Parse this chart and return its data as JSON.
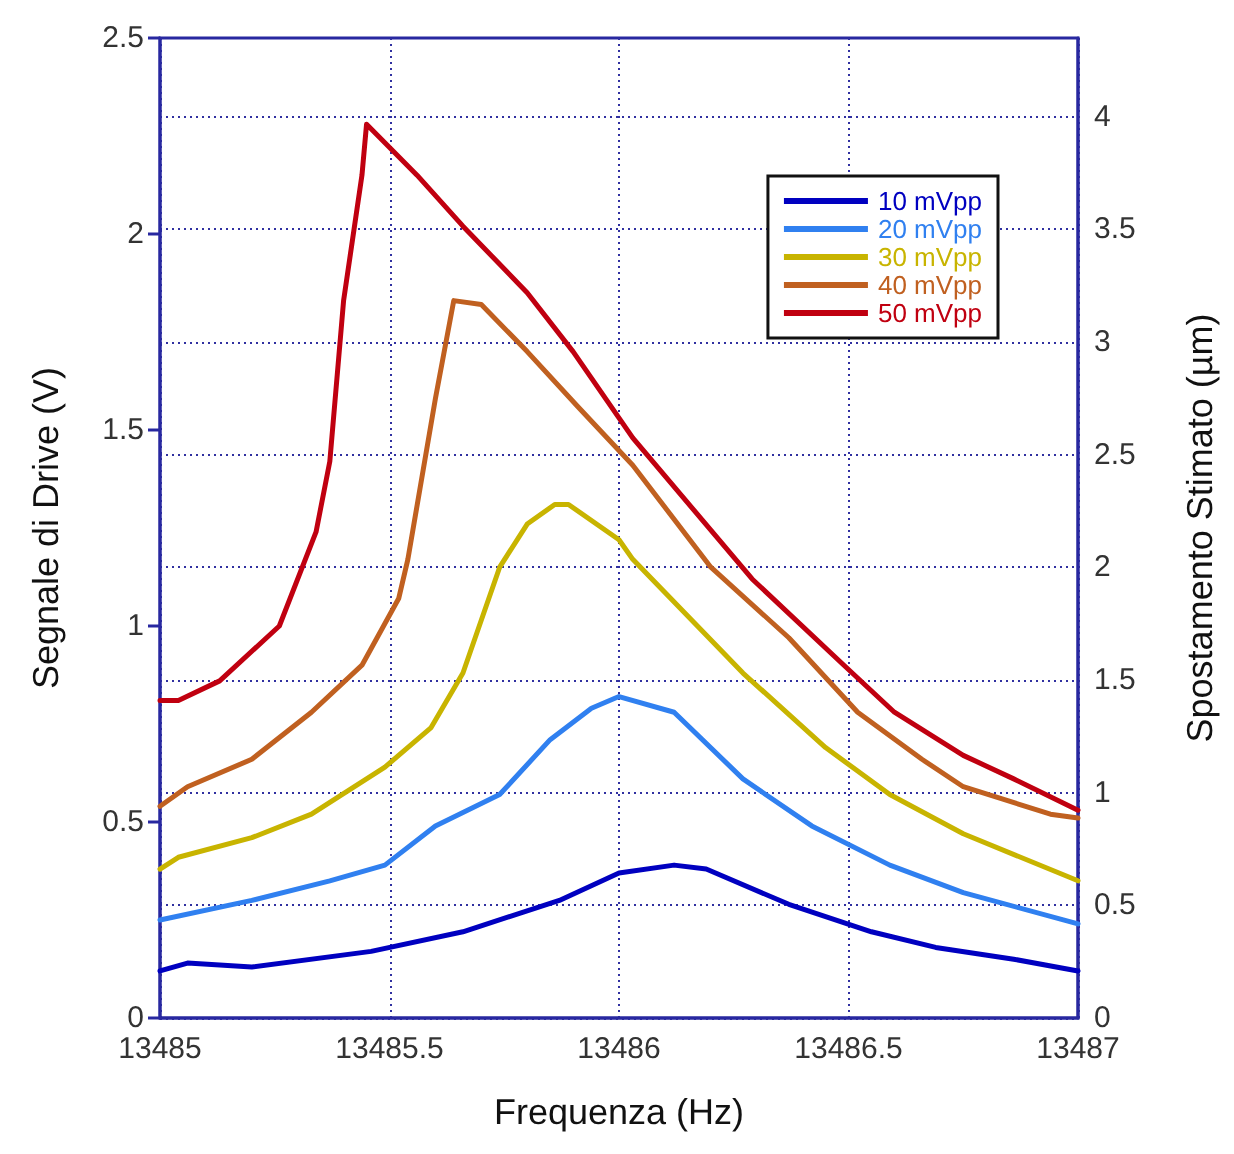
{
  "chart_data": {
    "type": "line",
    "xlabel": "Frequenza (Hz)",
    "ylabel": "Segnale di Drive (V)",
    "y2label": "Spostamento Stimato (µm)",
    "xlim": [
      13485,
      13487
    ],
    "xticks": [
      13485,
      13485.5,
      13486,
      13486.5,
      13487
    ],
    "ylim": [
      0,
      2.5
    ],
    "yticks": [
      0,
      0.5,
      1,
      1.5,
      2,
      2.5
    ],
    "y2lim": [
      0,
      4.35
    ],
    "y2ticks": [
      0,
      0.5,
      1,
      1.5,
      2,
      2.5,
      3,
      3.5,
      4
    ],
    "grid": true,
    "legend": "top right",
    "marker": "none",
    "line_style": "solid",
    "series": [
      {
        "name": "10 mVpp",
        "color": "#0000c0",
        "x": [
          13485,
          13485.06,
          13485.2,
          13485.46,
          13485.66,
          13485.87,
          13486,
          13486.12,
          13486.19,
          13486.37,
          13486.55,
          13486.69,
          13486.86,
          13487
        ],
        "values": [
          0.12,
          0.14,
          0.13,
          0.17,
          0.22,
          0.3,
          0.37,
          0.39,
          0.38,
          0.29,
          0.22,
          0.18,
          0.15,
          0.12
        ]
      },
      {
        "name": "20 mVpp",
        "color": "#3080f0",
        "x": [
          13485,
          13485.2,
          13485.37,
          13485.49,
          13485.6,
          13485.74,
          13485.85,
          13485.94,
          13486,
          13486.12,
          13486.27,
          13486.42,
          13486.59,
          13486.75,
          13487
        ],
        "values": [
          0.25,
          0.3,
          0.35,
          0.39,
          0.49,
          0.57,
          0.71,
          0.79,
          0.82,
          0.78,
          0.61,
          0.49,
          0.39,
          0.32,
          0.24
        ]
      },
      {
        "name": "30 mVpp",
        "color": "#c8b400",
        "x": [
          13485,
          13485.04,
          13485.2,
          13485.33,
          13485.49,
          13485.59,
          13485.66,
          13485.74,
          13485.8,
          13485.86,
          13485.89,
          13486,
          13486.03,
          13486.27,
          13486.45,
          13486.59,
          13486.75,
          13487
        ],
        "values": [
          0.38,
          0.41,
          0.46,
          0.52,
          0.64,
          0.74,
          0.88,
          1.15,
          1.26,
          1.31,
          1.31,
          1.22,
          1.17,
          0.88,
          0.69,
          0.57,
          0.47,
          0.35
        ]
      },
      {
        "name": "40 mVpp",
        "color": "#c06020",
        "x": [
          13485,
          13485.06,
          13485.2,
          13485.33,
          13485.44,
          13485.52,
          13485.54,
          13485.6,
          13485.64,
          13485.7,
          13485.8,
          13485.91,
          13486.03,
          13486.2,
          13486.37,
          13486.52,
          13486.66,
          13486.75,
          13486.94,
          13487
        ],
        "values": [
          0.54,
          0.59,
          0.66,
          0.78,
          0.9,
          1.07,
          1.17,
          1.58,
          1.83,
          1.82,
          1.7,
          1.56,
          1.41,
          1.15,
          0.97,
          0.78,
          0.66,
          0.59,
          0.52,
          0.51
        ]
      },
      {
        "name": "50 mVpp",
        "color": "#c00010",
        "x": [
          13485,
          13485.04,
          13485.13,
          13485.26,
          13485.34,
          13485.37,
          13485.4,
          13485.44,
          13485.45,
          13485.56,
          13485.66,
          13485.8,
          13485.9,
          13486.03,
          13486.29,
          13486.49,
          13486.6,
          13486.75,
          13486.86,
          13487
        ],
        "values": [
          0.81,
          0.81,
          0.86,
          1.0,
          1.24,
          1.42,
          1.83,
          2.15,
          2.28,
          2.15,
          2.02,
          1.85,
          1.7,
          1.48,
          1.12,
          0.9,
          0.78,
          0.67,
          0.61,
          0.53
        ]
      }
    ]
  }
}
